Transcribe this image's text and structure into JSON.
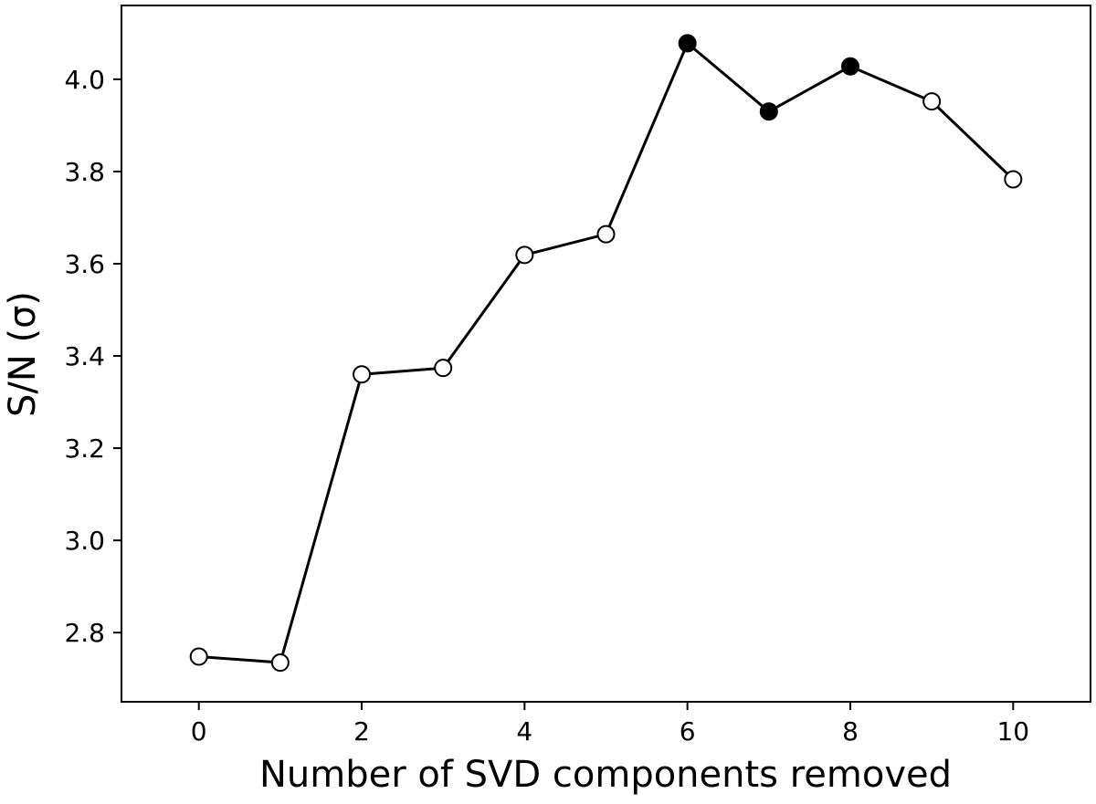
{
  "chart_data": {
    "type": "line",
    "title": "",
    "xlabel": "Number of SVD components removed",
    "ylabel": "S/N (σ)",
    "xlim": [
      -0.95,
      10.95
    ],
    "ylim": [
      2.65,
      4.16
    ],
    "xticks": [
      0,
      2,
      4,
      6,
      8,
      10
    ],
    "yticks": [
      2.8,
      3.0,
      3.2,
      3.4,
      3.6,
      3.8,
      4.0
    ],
    "xtick_labels": [
      "0",
      "2",
      "4",
      "6",
      "8",
      "10"
    ],
    "ytick_labels": [
      "2.8",
      "3.0",
      "3.2",
      "3.4",
      "3.6",
      "3.8",
      "4.0"
    ],
    "grid": false,
    "legend": "none",
    "series": [
      {
        "x": [
          0,
          1,
          2,
          3,
          4,
          5,
          6,
          7,
          8,
          9,
          10
        ],
        "values": [
          2.748,
          2.735,
          3.36,
          3.374,
          3.619,
          3.664,
          4.078,
          3.93,
          4.028,
          3.952,
          3.783
        ],
        "filled": [
          false,
          false,
          false,
          false,
          false,
          false,
          true,
          true,
          true,
          false,
          false
        ],
        "line_color": "#000000",
        "filled_marker_color": "#000000",
        "open_marker_color": "#ffffff"
      }
    ]
  }
}
